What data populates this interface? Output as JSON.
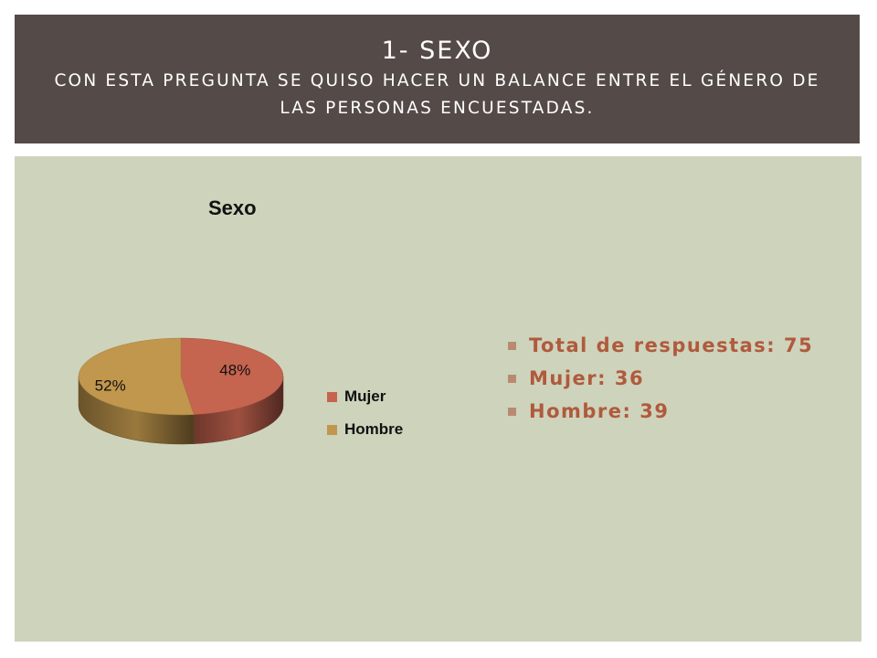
{
  "header": {
    "title": "1- SEXO",
    "subtitle": "CON ESTA PREGUNTA SE QUISO HACER UN BALANCE ENTRE EL GÉNERO DE LAS PERSONAS ENCUESTADAS."
  },
  "colors": {
    "header_bg": "#544a47",
    "content_bg": "#ced3bc",
    "mujer": "#c5644f",
    "hombre": "#c0974c",
    "bullet_text": "#b05a3c"
  },
  "chart_data": {
    "type": "pie",
    "title": "Sexo",
    "style": "3d",
    "legend_position": "right",
    "slices": [
      {
        "name": "Mujer",
        "value": 48,
        "label": "48%",
        "color": "#c5644f"
      },
      {
        "name": "Hombre",
        "value": 52,
        "label": "52%",
        "color": "#c0974c"
      }
    ]
  },
  "bullets": [
    {
      "text": "Total de respuestas: 75"
    },
    {
      "text": "Mujer: 36"
    },
    {
      "text": "Hombre: 39"
    }
  ]
}
